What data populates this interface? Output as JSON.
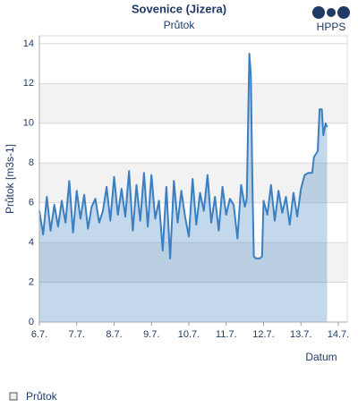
{
  "chart_data": {
    "type": "line",
    "title": "Sovenice (Jizera)",
    "subtitle": "Průtok",
    "logo": "HPPS",
    "y_label": "Průtok [m3s-1]",
    "x_label": "Datum",
    "xlim": [
      6,
      14.24
    ],
    "ylim": [
      0,
      14.4
    ],
    "xticks": [
      {
        "value": 6,
        "label": "6.7."
      },
      {
        "value": 7,
        "label": "7.7."
      },
      {
        "value": 8,
        "label": "8.7."
      },
      {
        "value": 9,
        "label": "9.7."
      },
      {
        "value": 10,
        "label": "10.7."
      },
      {
        "value": 11,
        "label": "11.7."
      },
      {
        "value": 12,
        "label": "12.7."
      },
      {
        "value": 13,
        "label": "13.7."
      },
      {
        "value": 14,
        "label": "14.7."
      }
    ],
    "yticks": [
      0,
      2,
      4,
      6,
      8,
      10,
      12,
      14
    ],
    "grid": true,
    "series": [
      {
        "name": "Průtok",
        "color": "#3a7fc1",
        "x": [
          6.0,
          6.1,
          6.2,
          6.3,
          6.4,
          6.5,
          6.6,
          6.7,
          6.8,
          6.9,
          7.0,
          7.1,
          7.2,
          7.3,
          7.4,
          7.5,
          7.6,
          7.7,
          7.8,
          7.9,
          8.0,
          8.1,
          8.2,
          8.3,
          8.4,
          8.5,
          8.6,
          8.7,
          8.8,
          8.9,
          9.0,
          9.1,
          9.2,
          9.3,
          9.4,
          9.5,
          9.6,
          9.7,
          9.8,
          9.9,
          10.0,
          10.1,
          10.2,
          10.3,
          10.4,
          10.5,
          10.6,
          10.7,
          10.8,
          10.9,
          11.0,
          11.1,
          11.2,
          11.3,
          11.4,
          11.5,
          11.55,
          11.62,
          11.66,
          11.7,
          11.74,
          11.8,
          11.9,
          11.96,
          12.0,
          12.1,
          12.2,
          12.3,
          12.4,
          12.5,
          12.6,
          12.7,
          12.8,
          12.9,
          13.0,
          13.1,
          13.2,
          13.3,
          13.35,
          13.45,
          13.5,
          13.56,
          13.6,
          13.66,
          13.7
        ],
        "values": [
          5.6,
          4.4,
          6.3,
          4.6,
          5.9,
          4.8,
          6.1,
          5.0,
          7.1,
          4.5,
          6.6,
          5.2,
          6.4,
          4.7,
          5.8,
          6.2,
          5.0,
          5.6,
          6.8,
          5.1,
          7.3,
          5.4,
          6.7,
          5.3,
          7.6,
          4.6,
          6.9,
          5.1,
          7.5,
          4.8,
          7.4,
          5.2,
          6.1,
          3.6,
          6.8,
          3.2,
          7.1,
          5.0,
          6.6,
          5.3,
          4.3,
          7.2,
          4.9,
          6.5,
          5.6,
          7.4,
          5.0,
          6.3,
          4.6,
          6.8,
          5.4,
          6.2,
          5.9,
          4.2,
          6.9,
          5.8,
          6.2,
          13.5,
          12.4,
          7.0,
          3.3,
          3.2,
          3.2,
          3.3,
          6.1,
          5.4,
          6.9,
          5.1,
          6.6,
          5.5,
          6.3,
          4.9,
          6.5,
          5.3,
          6.7,
          7.4,
          7.5,
          7.5,
          8.3,
          8.6,
          10.7,
          10.7,
          9.4,
          10.0,
          9.8
        ]
      }
    ]
  }
}
